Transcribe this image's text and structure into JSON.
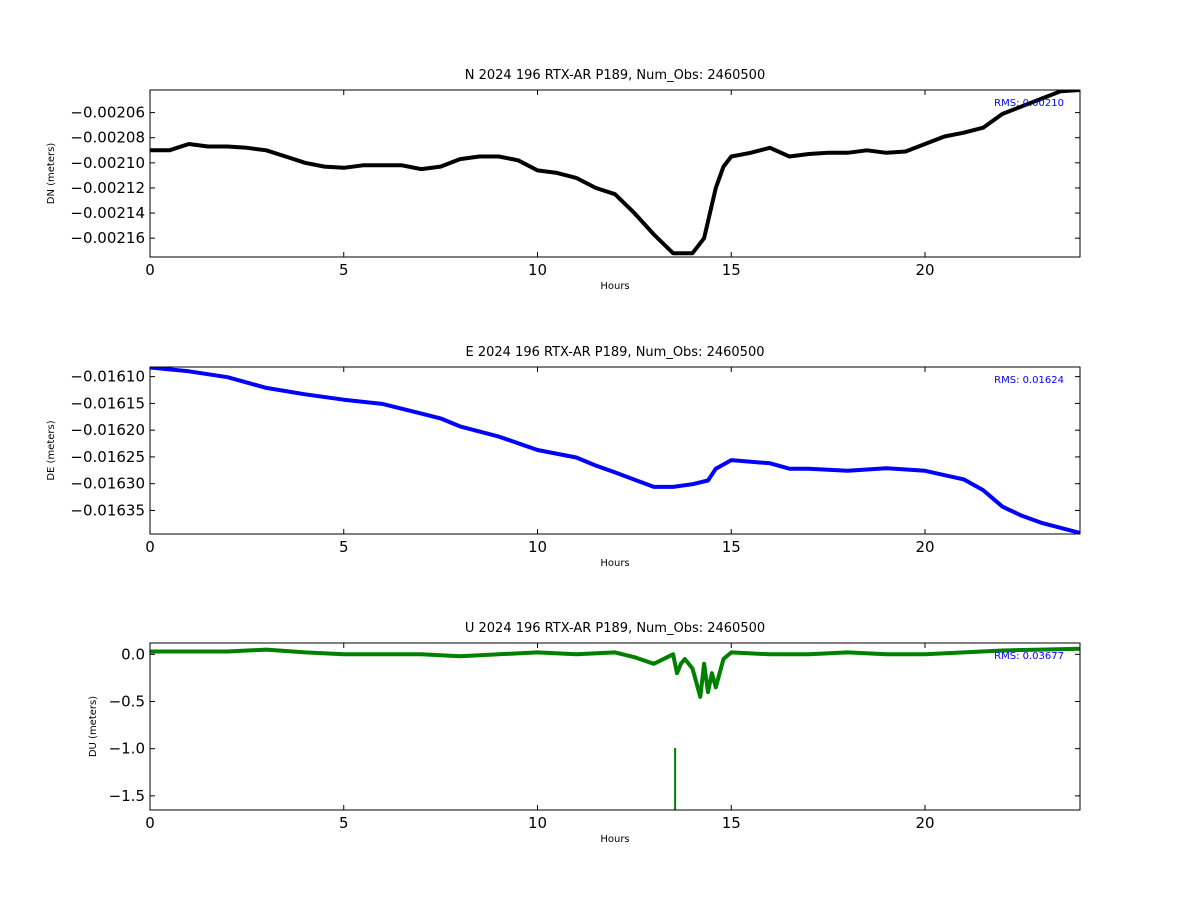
{
  "figure": {
    "background": "#ffffff"
  },
  "chart_data": [
    {
      "type": "line",
      "title": "N 2024 196 RTX-AR  P189, Num_Obs: 2460500",
      "xlabel": "Hours",
      "ylabel": "DN (meters)",
      "xlim": [
        0,
        24
      ],
      "ylim": [
        -0.002175,
        -0.002042
      ],
      "x_ticks": [
        0,
        5,
        10,
        15,
        20
      ],
      "y_ticks": [
        -0.00216,
        -0.00214,
        -0.00212,
        -0.0021,
        -0.00208,
        -0.00206
      ],
      "y_tick_labels": [
        "−0.00216",
        "−0.00214",
        "−0.00212",
        "−0.00210",
        "−0.00208",
        "−0.00206"
      ],
      "annotation": "RMS:  0.00210",
      "color": "#000000",
      "annotation_color": "#0000ff",
      "series": [
        {
          "x": [
            0,
            0.5,
            1,
            1.5,
            2,
            2.5,
            3,
            3.5,
            4,
            4.5,
            5,
            5.5,
            6,
            6.5,
            7,
            7.5,
            8,
            8.5,
            9,
            9.5,
            10,
            10.5,
            11,
            11.5,
            12,
            12.5,
            13,
            13.5,
            14,
            14.3,
            14.6,
            14.8,
            15,
            15.5,
            16,
            16.5,
            17,
            17.5,
            18,
            18.5,
            19,
            19.5,
            20,
            20.5,
            21,
            21.5,
            22,
            22.5,
            23,
            23.5,
            24
          ],
          "y": [
            -0.00209,
            -0.00209,
            -0.002085,
            -0.002087,
            -0.002087,
            -0.002088,
            -0.00209,
            -0.002095,
            -0.0021,
            -0.002103,
            -0.002104,
            -0.002102,
            -0.002102,
            -0.002102,
            -0.002105,
            -0.002103,
            -0.002097,
            -0.002095,
            -0.002095,
            -0.002098,
            -0.002106,
            -0.002108,
            -0.002112,
            -0.00212,
            -0.002125,
            -0.00214,
            -0.002157,
            -0.002172,
            -0.002172,
            -0.00216,
            -0.00212,
            -0.002103,
            -0.002095,
            -0.002092,
            -0.002088,
            -0.002095,
            -0.002093,
            -0.002092,
            -0.002092,
            -0.00209,
            -0.002092,
            -0.002091,
            -0.002085,
            -0.002079,
            -0.002076,
            -0.002072,
            -0.002061,
            -0.002055,
            -0.002049,
            -0.002043,
            -0.002042
          ]
        }
      ]
    },
    {
      "type": "line",
      "title": "E 2024 196 RTX-AR  P189, Num_Obs: 2460500",
      "xlabel": "Hours",
      "ylabel": "DE (meters)",
      "xlim": [
        0,
        24
      ],
      "ylim": [
        -0.016394,
        -0.016082
      ],
      "x_ticks": [
        0,
        5,
        10,
        15,
        20
      ],
      "y_ticks": [
        -0.01635,
        -0.0163,
        -0.01625,
        -0.0162,
        -0.01615,
        -0.0161
      ],
      "y_tick_labels": [
        "−0.01635",
        "−0.01630",
        "−0.01625",
        "−0.01620",
        "−0.01615",
        "−0.01610"
      ],
      "annotation": "RMS:  0.01624",
      "color": "#0000ff",
      "annotation_color": "#0000ff",
      "series": [
        {
          "x": [
            0,
            1,
            2,
            3,
            4,
            5,
            6,
            7,
            7.5,
            8,
            9,
            10,
            11,
            11.5,
            12,
            13,
            13.5,
            14,
            14.4,
            14.6,
            15,
            16,
            16.5,
            17,
            18,
            19,
            20,
            21,
            21.5,
            22,
            22.5,
            23,
            24
          ],
          "y": [
            -0.016083,
            -0.01609,
            -0.016101,
            -0.016121,
            -0.016133,
            -0.016143,
            -0.016151,
            -0.016169,
            -0.016178,
            -0.016193,
            -0.016212,
            -0.016237,
            -0.016251,
            -0.016266,
            -0.016279,
            -0.016306,
            -0.016306,
            -0.016301,
            -0.016294,
            -0.016272,
            -0.016256,
            -0.016262,
            -0.016272,
            -0.016272,
            -0.016276,
            -0.016271,
            -0.016276,
            -0.016292,
            -0.016312,
            -0.016343,
            -0.01636,
            -0.016373,
            -0.016392
          ]
        }
      ]
    },
    {
      "type": "line",
      "title": "U 2024 196 RTX-AR  P189, Num_Obs: 2460500",
      "xlabel": "Hours",
      "ylabel": "DU (meters)",
      "xlim": [
        0,
        24
      ],
      "ylim": [
        -1.65,
        0.12
      ],
      "x_ticks": [
        0,
        5,
        10,
        15,
        20
      ],
      "y_ticks": [
        -1.5,
        -1,
        -0.5,
        0
      ],
      "y_tick_labels": [
        "−1.5",
        "−1.0",
        "−0.5",
        "0.0"
      ],
      "annotation": "RMS:  0.03677",
      "color": "#008000",
      "annotation_color": "#0000ff",
      "series": [
        {
          "x": [
            0,
            1,
            2,
            3,
            4,
            5,
            6,
            7,
            8,
            9,
            10,
            11,
            12,
            12.5,
            13,
            13.5,
            13.6,
            13.7,
            13.8,
            14,
            14.2,
            14.3,
            14.4,
            14.5,
            14.6,
            14.7,
            14.8,
            15,
            16,
            17,
            18,
            19,
            20,
            21,
            22,
            23,
            24
          ],
          "y": [
            0.03,
            0.03,
            0.03,
            0.05,
            0.02,
            0,
            0,
            0,
            -0.02,
            0,
            0.02,
            0,
            0.02,
            -0.03,
            -0.1,
            0,
            -0.2,
            -0.1,
            -0.05,
            -0.15,
            -0.45,
            -0.1,
            -0.4,
            -0.2,
            -0.35,
            -0.2,
            -0.05,
            0.02,
            0,
            0,
            0.02,
            0,
            0,
            0.02,
            0.04,
            0.05,
            0.06
          ]
        },
        {
          "x": [
            13.55,
            13.55
          ],
          "y": [
            -1.65,
            -1.0
          ]
        }
      ]
    }
  ]
}
